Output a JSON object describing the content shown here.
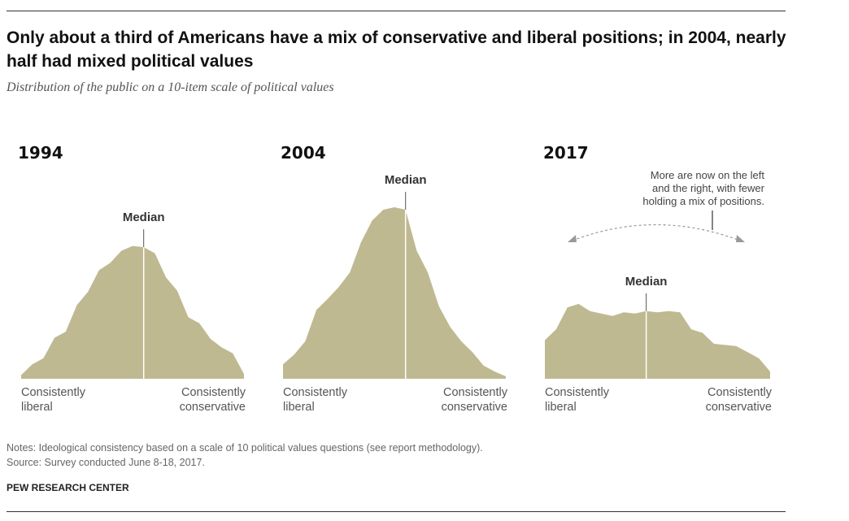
{
  "title": "Only about a third of Americans have a mix of conservative and liberal positions; in 2004, nearly half had mixed political values",
  "subtitle": "Distribution of the public on a 10-item scale of political values",
  "notes": "Notes: Ideological consistency based on a scale of 10 political values questions (see report methodology).",
  "source": "Source: Survey conducted June 8-18, 2017.",
  "credit": "PEW RESEARCH CENTER",
  "colors": {
    "fill": "#bfb991",
    "median_line": "#ffffff",
    "tick": "#555555",
    "arrow": "#999999"
  },
  "chart_data": [
    {
      "type": "area",
      "title": "1994",
      "median_label": "Median",
      "left_label": [
        "Consistently",
        "liberal"
      ],
      "right_label": [
        "Consistently",
        "conservative"
      ],
      "x": [
        -10,
        -9,
        -8,
        -7,
        -6,
        -5,
        -4,
        -3,
        -2,
        -1,
        0,
        1,
        2,
        3,
        4,
        5,
        6,
        7,
        8,
        9,
        10
      ],
      "values": [
        0.3,
        1.2,
        1.7,
        3.4,
        3.9,
        6.1,
        7.2,
        9.0,
        9.6,
        10.6,
        11.0,
        10.9,
        10.4,
        8.4,
        7.3,
        5.1,
        4.6,
        3.3,
        2.6,
        2.1,
        0.4
      ],
      "median_x": 1,
      "ylim": [
        0,
        14
      ]
    },
    {
      "type": "area",
      "title": "2004",
      "median_label": "Median",
      "left_label": [
        "Consistently",
        "liberal"
      ],
      "right_label": [
        "Consistently",
        "conservative"
      ],
      "x": [
        -10,
        -9,
        -8,
        -7,
        -6,
        -5,
        -4,
        -3,
        -2,
        -1,
        0,
        1,
        2,
        3,
        4,
        5,
        6,
        7,
        8,
        9,
        10
      ],
      "values": [
        1.2,
        2.0,
        3.1,
        5.7,
        6.6,
        7.6,
        8.8,
        11.3,
        13.1,
        14.0,
        14.2,
        14.0,
        10.6,
        8.8,
        6.0,
        4.3,
        3.1,
        2.2,
        1.1,
        0.6,
        0.2
      ],
      "median_x": 1,
      "ylim": [
        0,
        14
      ]
    },
    {
      "type": "area",
      "title": "2017",
      "median_label": "Median",
      "left_label": [
        "Consistently",
        "liberal"
      ],
      "right_label": [
        "Consistently",
        "conservative"
      ],
      "x": [
        -10,
        -9,
        -8,
        -7,
        -6,
        -5,
        -4,
        -3,
        -2,
        -1,
        0,
        1,
        2,
        3,
        4,
        5,
        6,
        7,
        8,
        9,
        10
      ],
      "values": [
        3.2,
        4.1,
        5.9,
        6.2,
        5.6,
        5.4,
        5.2,
        5.5,
        5.4,
        5.6,
        5.5,
        5.6,
        5.5,
        4.1,
        3.8,
        2.9,
        2.8,
        2.7,
        2.2,
        1.7,
        0.6
      ],
      "median_x": -1,
      "ylim": [
        0,
        14
      ],
      "annotation": [
        "More are now on the left",
        "and the right, with fewer",
        "holding a mix of positions."
      ]
    }
  ]
}
